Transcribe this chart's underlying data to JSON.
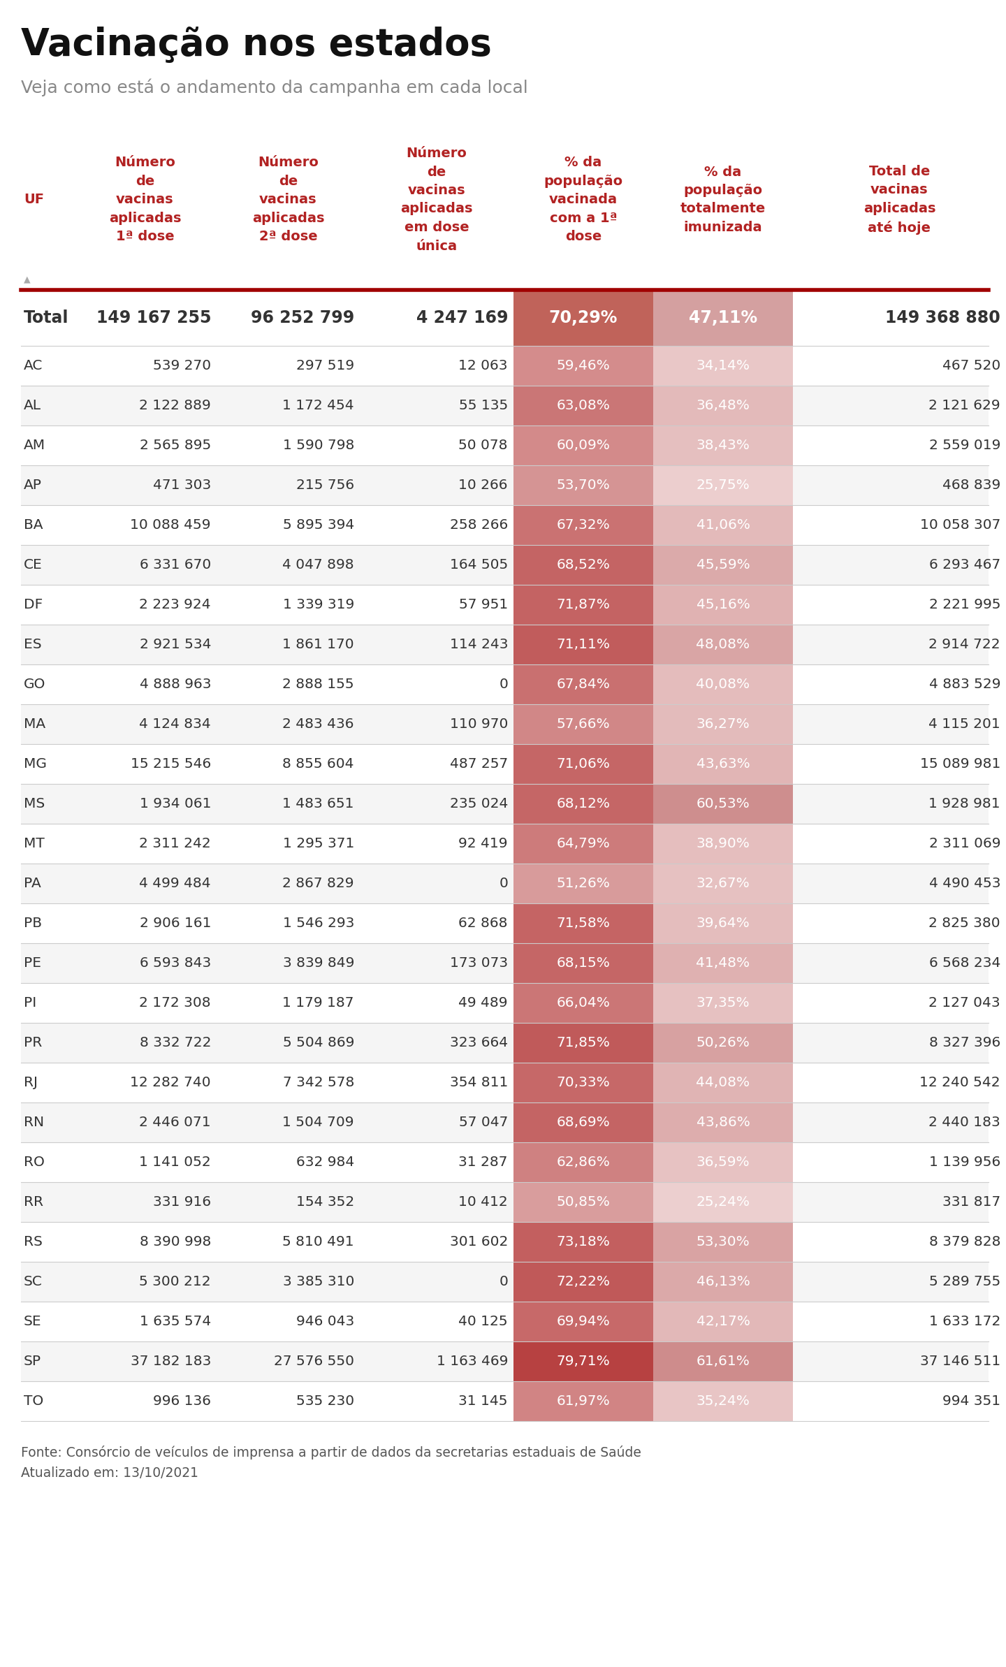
{
  "title": "Vacinação nos estados",
  "subtitle": "Veja como está o andamento da campanha em cada local",
  "footer_line1": "Fonte: Consórcio de veículos de imprensa a partir de dados da secretarias estaduais de Saúde",
  "footer_line2": "Atualizado em: 13/10/2021",
  "col_headers": [
    "UF",
    "Número\nde\nvacinas\naplicadas\n1ª dose",
    "Número\nde\nvacinas\naplicadas\n2ª dose",
    "Número\nde\nvacinas\naplicadas\nem dose\núnica",
    "% da\npopulação\nvacinada\ncom a 1ª\ndose",
    "% da\npopulação\ntotalmente\nimunizada",
    "Total de\nvacinas\naplicadas\naté hoje"
  ],
  "total_row": [
    "Total",
    "149 167 255",
    "96 252 799",
    "4 247 169",
    "70,29%",
    "47,11%",
    "149 368 880"
  ],
  "rows": [
    [
      "AC",
      "539 270",
      "297 519",
      "12 063",
      "59,46%",
      "34,14%",
      "467 520"
    ],
    [
      "AL",
      "2 122 889",
      "1 172 454",
      "55 135",
      "63,08%",
      "36,48%",
      "2 121 629"
    ],
    [
      "AM",
      "2 565 895",
      "1 590 798",
      "50 078",
      "60,09%",
      "38,43%",
      "2 559 019"
    ],
    [
      "AP",
      "471 303",
      "215 756",
      "10 266",
      "53,70%",
      "25,75%",
      "468 839"
    ],
    [
      "BA",
      "10 088 459",
      "5 895 394",
      "258 266",
      "67,32%",
      "41,06%",
      "10 058 307"
    ],
    [
      "CE",
      "6 331 670",
      "4 047 898",
      "164 505",
      "68,52%",
      "45,59%",
      "6 293 467"
    ],
    [
      "DF",
      "2 223 924",
      "1 339 319",
      "57 951",
      "71,87%",
      "45,16%",
      "2 221 995"
    ],
    [
      "ES",
      "2 921 534",
      "1 861 170",
      "114 243",
      "71,11%",
      "48,08%",
      "2 914 722"
    ],
    [
      "GO",
      "4 888 963",
      "2 888 155",
      "0",
      "67,84%",
      "40,08%",
      "4 883 529"
    ],
    [
      "MA",
      "4 124 834",
      "2 483 436",
      "110 970",
      "57,66%",
      "36,27%",
      "4 115 201"
    ],
    [
      "MG",
      "15 215 546",
      "8 855 604",
      "487 257",
      "71,06%",
      "43,63%",
      "15 089 981"
    ],
    [
      "MS",
      "1 934 061",
      "1 483 651",
      "235 024",
      "68,12%",
      "60,53%",
      "1 928 981"
    ],
    [
      "MT",
      "2 311 242",
      "1 295 371",
      "92 419",
      "64,79%",
      "38,90%",
      "2 311 069"
    ],
    [
      "PA",
      "4 499 484",
      "2 867 829",
      "0",
      "51,26%",
      "32,67%",
      "4 490 453"
    ],
    [
      "PB",
      "2 906 161",
      "1 546 293",
      "62 868",
      "71,58%",
      "39,64%",
      "2 825 380"
    ],
    [
      "PE",
      "6 593 843",
      "3 839 849",
      "173 073",
      "68,15%",
      "41,48%",
      "6 568 234"
    ],
    [
      "PI",
      "2 172 308",
      "1 179 187",
      "49 489",
      "66,04%",
      "37,35%",
      "2 127 043"
    ],
    [
      "PR",
      "8 332 722",
      "5 504 869",
      "323 664",
      "71,85%",
      "50,26%",
      "8 327 396"
    ],
    [
      "RJ",
      "12 282 740",
      "7 342 578",
      "354 811",
      "70,33%",
      "44,08%",
      "12 240 542"
    ],
    [
      "RN",
      "2 446 071",
      "1 504 709",
      "57 047",
      "68,69%",
      "43,86%",
      "2 440 183"
    ],
    [
      "RO",
      "1 141 052",
      "632 984",
      "31 287",
      "62,86%",
      "36,59%",
      "1 139 956"
    ],
    [
      "RR",
      "331 916",
      "154 352",
      "10 412",
      "50,85%",
      "25,24%",
      "331 817"
    ],
    [
      "RS",
      "8 390 998",
      "5 810 491",
      "301 602",
      "73,18%",
      "53,30%",
      "8 379 828"
    ],
    [
      "SC",
      "5 300 212",
      "3 385 310",
      "0",
      "72,22%",
      "46,13%",
      "5 289 755"
    ],
    [
      "SE",
      "1 635 574",
      "946 043",
      "40 125",
      "69,94%",
      "42,17%",
      "1 633 172"
    ],
    [
      "SP",
      "37 182 183",
      "27 576 550",
      "1 163 469",
      "79,71%",
      "61,61%",
      "37 146 511"
    ],
    [
      "TO",
      "996 136",
      "535 230",
      "31 145",
      "61,97%",
      "35,24%",
      "994 351"
    ]
  ],
  "col_pct4_values": [
    70.29,
    59.46,
    63.08,
    60.09,
    53.7,
    67.32,
    68.52,
    71.87,
    71.11,
    67.84,
    57.66,
    71.06,
    68.12,
    64.79,
    51.26,
    71.58,
    68.15,
    66.04,
    71.85,
    70.33,
    68.69,
    62.86,
    50.85,
    73.18,
    72.22,
    69.94,
    79.71,
    61.97
  ],
  "col_pct5_values": [
    47.11,
    34.14,
    36.48,
    38.43,
    25.75,
    41.06,
    45.59,
    45.16,
    48.08,
    40.08,
    36.27,
    43.63,
    60.53,
    38.9,
    32.67,
    39.64,
    41.48,
    37.35,
    50.26,
    44.08,
    43.86,
    36.59,
    25.24,
    53.3,
    46.13,
    42.17,
    61.61,
    35.24
  ],
  "header_color": "#b22222",
  "divider_color": "#a00000",
  "row_alt_color": "#f5f5f5",
  "row_white_color": "#ffffff",
  "title_color": "#111111",
  "subtitle_color": "#888888",
  "text_dark": "#333333",
  "text_white": "#ffffff",
  "background_color": "#ffffff",
  "col4_total_bg": "#c0635a",
  "col5_total_bg": "#d4a0a0"
}
